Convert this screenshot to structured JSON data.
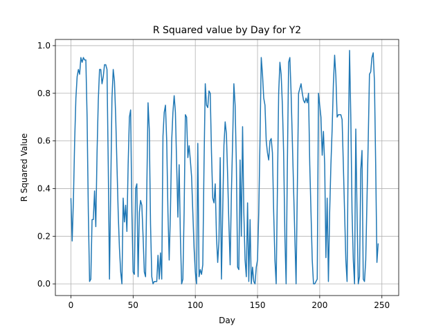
{
  "chart_data": {
    "type": "line",
    "title": "R Squared value by Day for Y2",
    "x_label": "Day",
    "y_label": "R Squared Value",
    "x": [
      0,
      1,
      2,
      3,
      4,
      5,
      6,
      7,
      8,
      9,
      10,
      11,
      12,
      13,
      14,
      15,
      16,
      17,
      18,
      19,
      20,
      21,
      22,
      23,
      24,
      25,
      26,
      27,
      28,
      29,
      30,
      31,
      32,
      33,
      34,
      35,
      36,
      37,
      38,
      39,
      40,
      41,
      42,
      43,
      44,
      45,
      46,
      47,
      48,
      49,
      50,
      51,
      52,
      53,
      54,
      55,
      56,
      57,
      58,
      59,
      60,
      61,
      62,
      63,
      64,
      65,
      66,
      67,
      68,
      69,
      70,
      71,
      72,
      73,
      74,
      75,
      76,
      77,
      78,
      79,
      80,
      81,
      82,
      83,
      84,
      85,
      86,
      87,
      88,
      89,
      90,
      91,
      92,
      93,
      94,
      95,
      96,
      97,
      98,
      99,
      100,
      101,
      102,
      103,
      104,
      105,
      106,
      107,
      108,
      109,
      110,
      111,
      112,
      113,
      114,
      115,
      116,
      117,
      118,
      119,
      120,
      121,
      122,
      123,
      124,
      125,
      126,
      127,
      128,
      129,
      130,
      131,
      132,
      133,
      134,
      135,
      136,
      137,
      138,
      139,
      140,
      141,
      142,
      143,
      144,
      145,
      146,
      147,
      148,
      149,
      150,
      151,
      152,
      153,
      154,
      155,
      156,
      157,
      158,
      159,
      160,
      161,
      162,
      163,
      164,
      165,
      166,
      167,
      168,
      169,
      170,
      171,
      172,
      173,
      174,
      175,
      176,
      177,
      178,
      179,
      180,
      181,
      182,
      183,
      184,
      185,
      186,
      187,
      188,
      189,
      190,
      191,
      192,
      193,
      194,
      195,
      196,
      197,
      198,
      199,
      200,
      201,
      202,
      203,
      204,
      205,
      206,
      207,
      208,
      209,
      210,
      211,
      212,
      213,
      214,
      215,
      216,
      217,
      218,
      219,
      220,
      221,
      222,
      223,
      224,
      225,
      226,
      227,
      228,
      229,
      230,
      231,
      232,
      233,
      234,
      235,
      236,
      237,
      238,
      239,
      240,
      241,
      242,
      243,
      244,
      245,
      246,
      247
    ],
    "series": [
      {
        "color": "#1f77b4",
        "values": [
          0.36,
          0.18,
          0.35,
          0.6,
          0.78,
          0.87,
          0.9,
          0.88,
          0.95,
          0.93,
          0.95,
          0.94,
          0.94,
          0.7,
          0.3,
          0.01,
          0.02,
          0.27,
          0.27,
          0.39,
          0.24,
          0.55,
          0.77,
          0.9,
          0.9,
          0.84,
          0.87,
          0.92,
          0.92,
          0.9,
          0.5,
          0.02,
          0.4,
          0.78,
          0.9,
          0.85,
          0.7,
          0.5,
          0.3,
          0.15,
          0.05,
          0.0,
          0.36,
          0.26,
          0.33,
          0.22,
          0.5,
          0.7,
          0.73,
          0.3,
          0.05,
          0.04,
          0.4,
          0.42,
          0.03,
          0.3,
          0.35,
          0.33,
          0.2,
          0.05,
          0.03,
          0.4,
          0.76,
          0.65,
          0.25,
          0.03,
          0.0,
          0.01,
          0.01,
          0.01,
          0.12,
          0.02,
          0.13,
          0.02,
          0.62,
          0.72,
          0.75,
          0.6,
          0.3,
          0.1,
          0.3,
          0.6,
          0.72,
          0.79,
          0.72,
          0.5,
          0.28,
          0.5,
          0.2,
          0.0,
          0.02,
          0.3,
          0.71,
          0.7,
          0.53,
          0.58,
          0.52,
          0.45,
          0.3,
          0.15,
          0.05,
          0.0,
          0.59,
          0.03,
          0.06,
          0.04,
          0.08,
          0.5,
          0.84,
          0.75,
          0.74,
          0.81,
          0.8,
          0.55,
          0.36,
          0.34,
          0.42,
          0.2,
          0.09,
          0.18,
          0.53,
          0.02,
          0.3,
          0.58,
          0.68,
          0.63,
          0.45,
          0.25,
          0.08,
          0.38,
          0.6,
          0.84,
          0.75,
          0.5,
          0.07,
          0.06,
          0.52,
          0.2,
          0.66,
          0.3,
          0.1,
          0.03,
          0.34,
          0.01,
          0.27,
          0.0,
          0.07,
          0.01,
          0.0,
          0.07,
          0.1,
          0.3,
          0.6,
          0.95,
          0.88,
          0.78,
          0.75,
          0.6,
          0.55,
          0.52,
          0.6,
          0.61,
          0.55,
          0.3,
          0.1,
          0.0,
          0.4,
          0.8,
          0.93,
          0.88,
          0.75,
          0.55,
          0.2,
          0.0,
          0.5,
          0.93,
          0.95,
          0.8,
          0.6,
          0.4,
          0.2,
          0.0,
          0.4,
          0.8,
          0.82,
          0.84,
          0.8,
          0.77,
          0.76,
          0.78,
          0.76,
          0.8,
          0.5,
          0.3,
          0.1,
          0.0,
          0.0,
          0.01,
          0.02,
          0.8,
          0.75,
          0.7,
          0.54,
          0.64,
          0.5,
          0.11,
          0.36,
          0.01,
          0.3,
          0.5,
          0.65,
          0.84,
          0.96,
          0.87,
          0.7,
          0.71,
          0.71,
          0.71,
          0.69,
          0.5,
          0.3,
          0.1,
          0.01,
          0.6,
          0.98,
          0.7,
          0.3,
          0.1,
          0.0,
          0.65,
          0.3,
          0.0,
          0.03,
          0.48,
          0.56,
          0.02,
          0.01,
          0.1,
          0.35,
          0.6,
          0.88,
          0.89,
          0.95,
          0.97,
          0.85,
          0.5,
          0.09,
          0.17
        ]
      }
    ],
    "xlim": [
      -12.5,
      263.5
    ],
    "xticks": [
      0,
      50,
      100,
      150,
      200,
      250
    ],
    "ylim": [
      -0.049,
      1.026
    ],
    "yticks": [
      {
        "value": 0,
        "label": "0.0"
      },
      {
        "value": 0.2,
        "label": "0.2"
      },
      {
        "value": 0.4,
        "label": "0.4"
      },
      {
        "value": 0.6,
        "label": "0.6"
      },
      {
        "value": 0.8,
        "label": "0.8"
      },
      {
        "value": 1,
        "label": "1.0"
      }
    ],
    "grid": true
  }
}
